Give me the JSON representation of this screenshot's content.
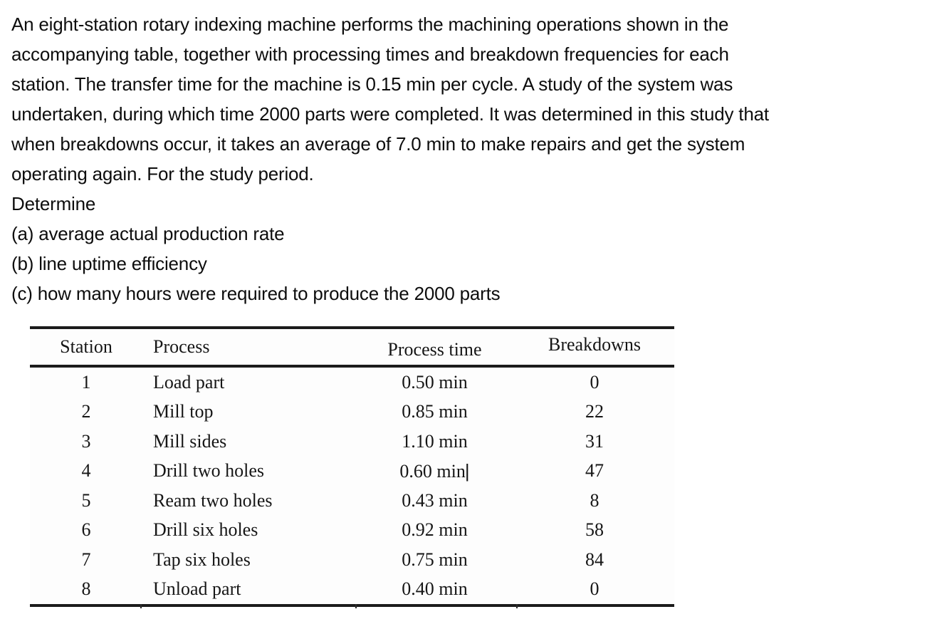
{
  "problem": {
    "paragraph_lines": [
      "An eight-station rotary indexing machine performs the machining operations shown in the",
      "accompanying table, together with processing times and breakdown frequencies for each",
      "station. The transfer time for the machine is 0.15 min per cycle. A study of the system was",
      "undertaken, during which time 2000 parts were completed. It was determined in this study that",
      "when breakdowns occur, it takes an average of 7.0 min to make repairs and get the system",
      "operating again. For the study period."
    ],
    "determine": "Determine",
    "questions": [
      "(a) average actual production rate",
      "(b) line uptime efficiency",
      "(c) how many hours were required to produce the 2000 parts"
    ]
  },
  "table": {
    "columns": [
      "Station",
      "Process",
      "Process time",
      "Breakdowns"
    ],
    "rows": [
      {
        "station": "1",
        "process": "Load part",
        "process_time": "0.50 min",
        "breakdowns": "0"
      },
      {
        "station": "2",
        "process": "Mill top",
        "process_time": "0.85 min",
        "breakdowns": "22"
      },
      {
        "station": "3",
        "process": "Mill sides",
        "process_time": "1.10 min",
        "breakdowns": "31"
      },
      {
        "station": "4",
        "process": "Drill two holes",
        "process_time": "0.60 min",
        "breakdowns": "47"
      },
      {
        "station": "5",
        "process": "Ream two holes",
        "process_time": "0.43 min",
        "breakdowns": "8"
      },
      {
        "station": "6",
        "process": "Drill six holes",
        "process_time": "0.92 min",
        "breakdowns": "58"
      },
      {
        "station": "7",
        "process": "Tap six holes",
        "process_time": "0.75 min",
        "breakdowns": "84"
      },
      {
        "station": "8",
        "process": "Unload part",
        "process_time": "0.40 min",
        "breakdowns": "0"
      }
    ],
    "text_cursor": "|"
  },
  "colors": {
    "text": "#0d0d0d",
    "table_rule": "#1b1b1b",
    "background": "#ffffff"
  }
}
